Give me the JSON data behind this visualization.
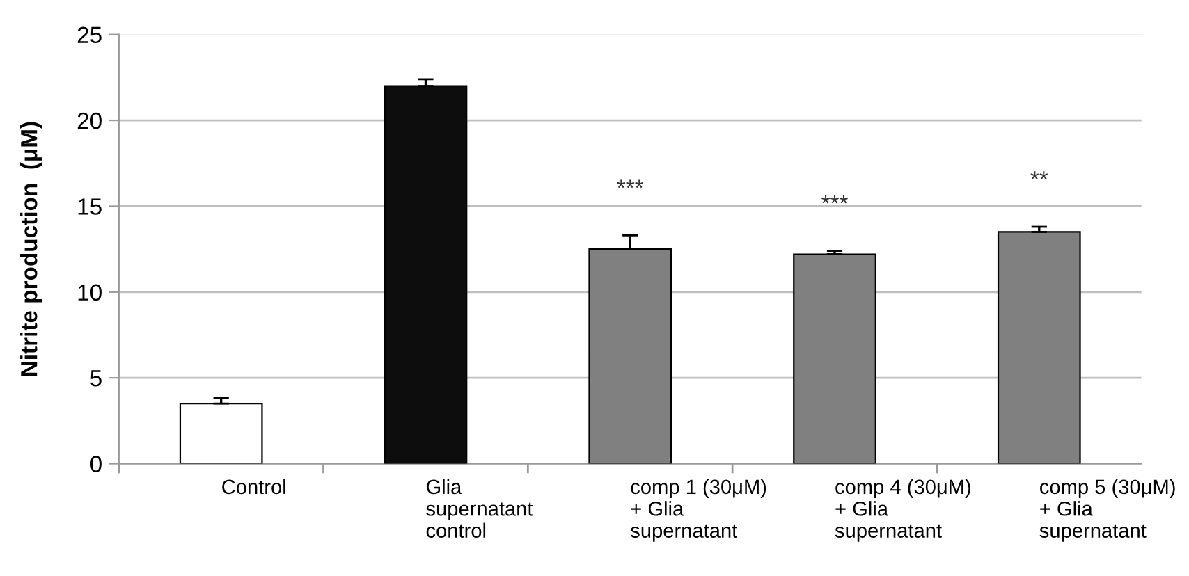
{
  "chart_data": {
    "type": "bar",
    "categories": [
      "Control",
      "Glia\nsupernatant\ncontrol",
      "comp 1 (30μM)\n+ Glia\nsupernatant",
      "comp 4 (30μM)\n+ Glia\nsupernatant",
      "comp 5 (30μM)\n+ Glia\nsupernatant"
    ],
    "values": [
      3.5,
      22.0,
      12.5,
      12.2,
      13.5
    ],
    "colors": [
      "#ffffff",
      "#0d0d0d",
      "#808080",
      "#808080",
      "#808080"
    ],
    "errors": [
      [
        3.5,
        3.85
      ],
      [
        22.0,
        22.4
      ],
      [
        12.5,
        13.3
      ],
      [
        12.2,
        12.4
      ],
      [
        13.5,
        13.8
      ]
    ],
    "ylabel": "Nitrite production  (μM)",
    "ylim": [
      0,
      25
    ],
    "yticks": [
      0,
      5,
      10,
      15,
      20,
      25
    ],
    "grid": "y",
    "annotations": [
      "***",
      "***",
      "**"
    ]
  }
}
